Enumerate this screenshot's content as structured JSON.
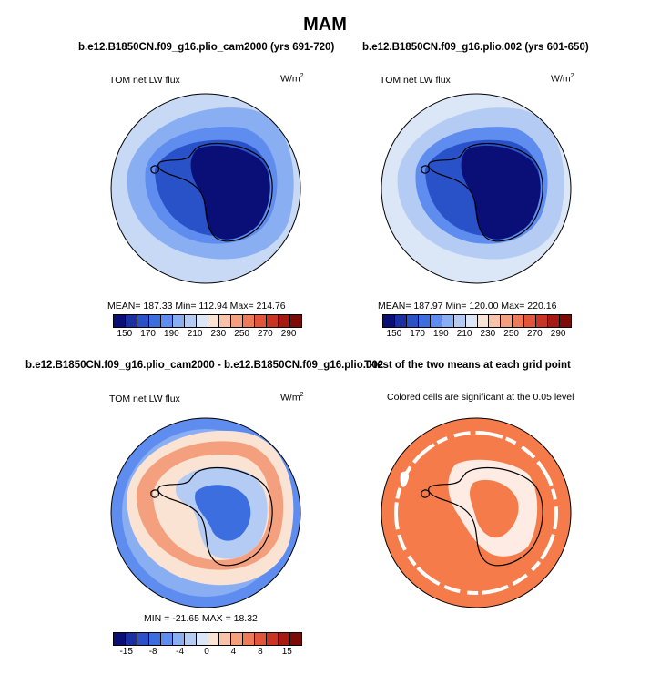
{
  "main_title": "MAM",
  "panels": {
    "top_left": {
      "title": "b.e12.B1850CN.f09_g16.plio_cam2000 (yrs 691-720)",
      "variable": "TOM net LW flux",
      "units_base": "W/m",
      "units_sup": "2",
      "stats": "MEAN= 187.33   Min= 112.94   Max= 214.76"
    },
    "top_right": {
      "title": "b.e12.B1850CN.f09_g16.plio.002 (yrs 601-650)",
      "variable": "TOM net LW flux",
      "units_base": "W/m",
      "units_sup": "2",
      "stats": "MEAN= 187.97   Min= 120.00   Max= 220.16"
    },
    "bottom_left": {
      "title": "b.e12.B1850CN.f09_g16.plio_cam2000 - b.e12.B1850CN.f09_g16.plio.002",
      "variable": "TOM net LW flux",
      "units_base": "W/m",
      "units_sup": "2",
      "stats": "MIN = -21.65  MAX =  18.32"
    },
    "bottom_right": {
      "title": "T-test of the two means at each grid point",
      "note": "Colored cells are significant at the 0.05 level"
    }
  },
  "colorbars": {
    "abs": {
      "labels": [
        "150",
        "170",
        "190",
        "210",
        "230",
        "250",
        "270",
        "290"
      ],
      "colors": [
        "#0a0f78",
        "#1a2fa0",
        "#2a52c8",
        "#3c6ee0",
        "#5e8cef",
        "#8aaef2",
        "#b4cbf4",
        "#dbe7f6",
        "#fbe3d3",
        "#f8c3a8",
        "#f4a07e",
        "#ee7a58",
        "#e2553b",
        "#c93424",
        "#a71a14",
        "#7d0b08"
      ]
    },
    "diff": {
      "labels": [
        "-15",
        "-8",
        "-4",
        "0",
        "4",
        "8",
        "15"
      ],
      "colors": [
        "#0a0f78",
        "#1a2fa0",
        "#2a52c8",
        "#3c6ee0",
        "#5e8cef",
        "#8aaef2",
        "#b4cbf4",
        "#dbe7f6",
        "#fbe3d3",
        "#f8c3a8",
        "#f4a07e",
        "#ee7a58",
        "#e2553b",
        "#c93424",
        "#a71a14",
        "#7d0b08"
      ]
    }
  },
  "colors": {
    "ttest_significant": "#f57c4a",
    "ocean_far_abs": "#c7d9f5",
    "continent_abs": "#0a0f78"
  }
}
